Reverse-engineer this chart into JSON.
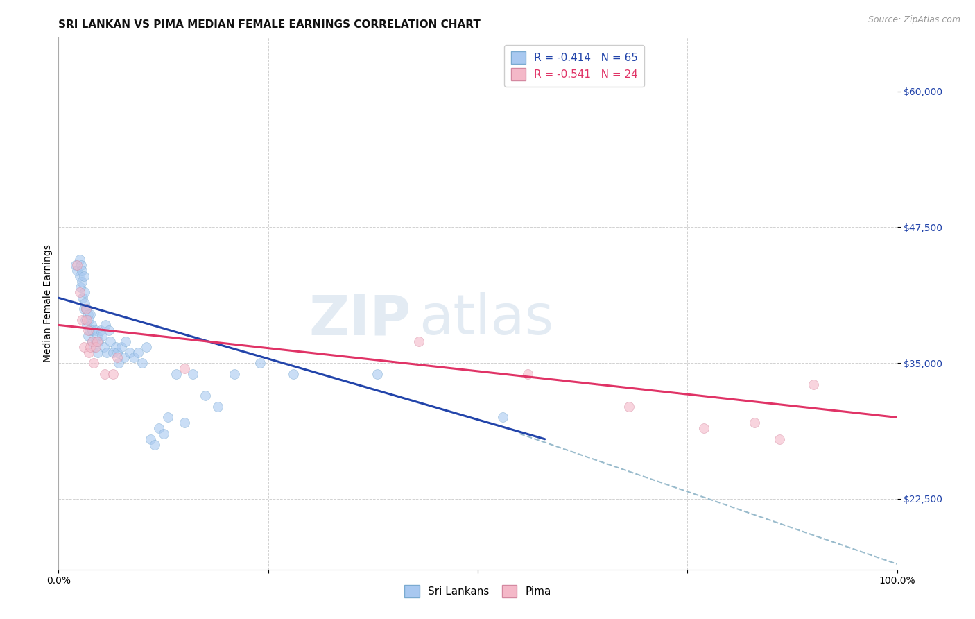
{
  "title": "SRI LANKAN VS PIMA MEDIAN FEMALE EARNINGS CORRELATION CHART",
  "source": "Source: ZipAtlas.com",
  "ylabel": "Median Female Earnings",
  "y_ticks": [
    22500,
    35000,
    47500,
    60000
  ],
  "y_tick_labels": [
    "$22,500",
    "$35,000",
    "$47,500",
    "$60,000"
  ],
  "y_min": 16000,
  "y_max": 65000,
  "x_min": 0.0,
  "x_max": 1.0,
  "sri_lankan_color": "#a8c8f0",
  "sri_lankan_edge": "#7aaad0",
  "pima_color": "#f4b8c8",
  "pima_edge": "#d488a0",
  "blue_line_color": "#2244aa",
  "pink_line_color": "#e03366",
  "dashed_line_color": "#99bbcc",
  "legend_label_sri": "R = -0.414   N = 65",
  "legend_label_pima": "R = -0.541   N = 24",
  "watermark_zip": "ZIP",
  "watermark_atlas": "atlas",
  "sri_lankan_x": [
    0.02,
    0.022,
    0.025,
    0.025,
    0.026,
    0.027,
    0.028,
    0.028,
    0.029,
    0.03,
    0.03,
    0.031,
    0.031,
    0.032,
    0.033,
    0.034,
    0.034,
    0.035,
    0.035,
    0.036,
    0.037,
    0.038,
    0.039,
    0.04,
    0.04,
    0.042,
    0.044,
    0.044,
    0.046,
    0.047,
    0.048,
    0.05,
    0.052,
    0.054,
    0.056,
    0.058,
    0.06,
    0.062,
    0.065,
    0.068,
    0.07,
    0.072,
    0.075,
    0.078,
    0.08,
    0.085,
    0.09,
    0.095,
    0.1,
    0.105,
    0.11,
    0.115,
    0.12,
    0.125,
    0.13,
    0.14,
    0.15,
    0.16,
    0.175,
    0.19,
    0.21,
    0.24,
    0.28,
    0.38,
    0.53
  ],
  "sri_lankan_y": [
    44000,
    43500,
    44500,
    43000,
    42000,
    44000,
    43500,
    42500,
    41000,
    40000,
    43000,
    40500,
    41500,
    39000,
    40000,
    38500,
    40000,
    39500,
    37500,
    39000,
    38000,
    39500,
    38500,
    38000,
    37000,
    36500,
    38000,
    37000,
    37500,
    36000,
    37000,
    38000,
    37500,
    36500,
    38500,
    36000,
    38000,
    37000,
    36000,
    36500,
    36000,
    35000,
    36500,
    35500,
    37000,
    36000,
    35500,
    36000,
    35000,
    36500,
    28000,
    27500,
    29000,
    28500,
    30000,
    34000,
    29500,
    34000,
    32000,
    31000,
    34000,
    35000,
    34000,
    34000,
    30000
  ],
  "pima_x": [
    0.022,
    0.025,
    0.028,
    0.03,
    0.033,
    0.034,
    0.035,
    0.036,
    0.038,
    0.04,
    0.042,
    0.044,
    0.046,
    0.055,
    0.065,
    0.07,
    0.15,
    0.43,
    0.56,
    0.68,
    0.77,
    0.83,
    0.86,
    0.9
  ],
  "pima_y": [
    44000,
    41500,
    39000,
    36500,
    40000,
    39000,
    38000,
    36000,
    36500,
    37000,
    35000,
    36500,
    37000,
    34000,
    34000,
    35500,
    34500,
    37000,
    34000,
    31000,
    29000,
    29500,
    28000,
    33000
  ],
  "blue_trend_x": [
    0.0,
    0.58
  ],
  "blue_trend_y": [
    41000,
    28000
  ],
  "pink_trend_x": [
    0.0,
    1.0
  ],
  "pink_trend_y": [
    38500,
    30000
  ],
  "dashed_trend_x": [
    0.55,
    1.0
  ],
  "dashed_trend_y": [
    28500,
    16500
  ],
  "marker_size": 100,
  "marker_alpha": 0.6,
  "title_fontsize": 11,
  "axis_label_fontsize": 10,
  "tick_fontsize": 10,
  "legend_fontsize": 11,
  "source_fontsize": 9,
  "grid_color": "#cccccc",
  "background_color": "#ffffff",
  "sri_legend": "Sri Lankans",
  "pima_legend": "Pima"
}
